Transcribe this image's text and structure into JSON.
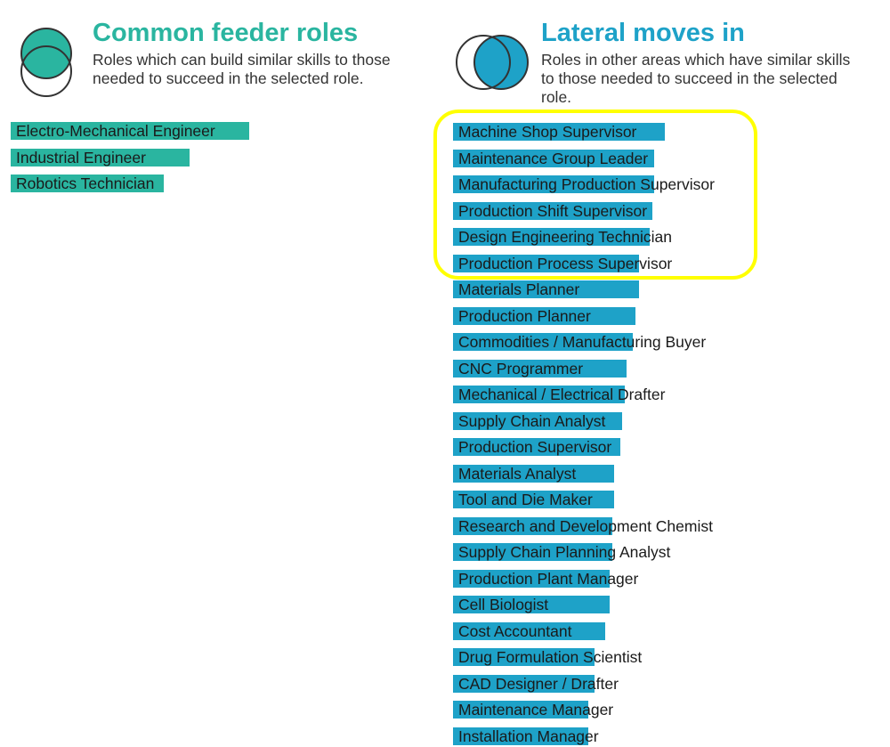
{
  "colors": {
    "feeder": "#2ab5a0",
    "lateral": "#1ea2c8",
    "highlight": "#ffff00"
  },
  "feeder": {
    "title": "Common feeder roles",
    "subtitle_line1": "Roles which can build similar skills to those",
    "subtitle_line2": "needed to succeed in the selected role.",
    "icon": "venn-overlap-icon"
  },
  "lateral": {
    "title": "Lateral moves in",
    "subtitle_line1": "Roles in other areas which have similar skills",
    "subtitle_line2": "to those needed to succeed in the selected",
    "subtitle_line3": "role.",
    "icon": "venn-overlap-icon"
  },
  "chart_data": [
    {
      "type": "bar",
      "orientation": "horizontal",
      "title": "Common feeder roles",
      "categories": [
        "Electro-Mechanical Engineer",
        "Industrial Engineer",
        "Robotics Technician"
      ],
      "values": [
        100,
        75,
        64
      ],
      "xlim": [
        0,
        100
      ]
    },
    {
      "type": "bar",
      "orientation": "horizontal",
      "title": "Lateral moves in",
      "categories": [
        "Machine Shop Supervisor",
        "Maintenance Group Leader",
        "Manufacturing Production Supervisor",
        "Production Shift Supervisor",
        "Design Engineering Technician",
        "Production Process Supervisor",
        "Materials Planner",
        "Production Planner",
        "Commodities / Manufacturing Buyer",
        "CNC Programmer",
        "Mechanical / Electrical Drafter",
        "Supply Chain Analyst",
        "Production Supervisor",
        "Materials Analyst",
        "Tool and Die Maker",
        "Research and Development Chemist",
        "Supply Chain Planning Analyst",
        "Production Plant Manager",
        "Cell Biologist",
        "Cost Accountant",
        "Drug Formulation Scientist",
        "CAD Designer / Drafter",
        "Maintenance Manager",
        "Installation Manager"
      ],
      "values": [
        100,
        95,
        95,
        94,
        93,
        88,
        88,
        86,
        85,
        82,
        81,
        80,
        79,
        76,
        76,
        75,
        75,
        74,
        74,
        72,
        67,
        67,
        64,
        64
      ],
      "xlim": [
        0,
        100
      ],
      "highlighted": [
        "Machine Shop Supervisor",
        "Maintenance Group Leader",
        "Manufacturing Production Supervisor",
        "Production Shift Supervisor",
        "Design Engineering Technician",
        "Production Process Supervisor"
      ]
    }
  ]
}
